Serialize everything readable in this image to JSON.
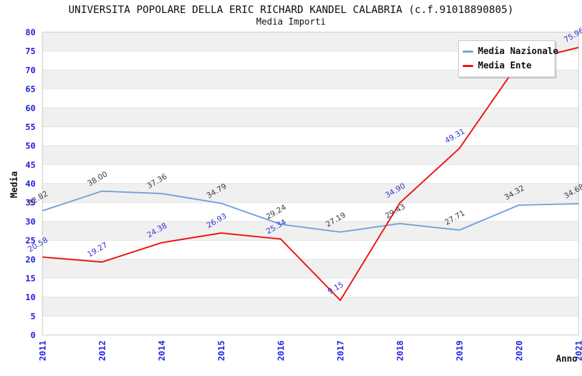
{
  "chart_data": {
    "type": "line",
    "title": "UNIVERSITA POPOLARE DELLA ERIC RICHARD KANDEL CALABRIA (c.f.91018890805)",
    "subtitle": "Media Importi",
    "xlabel": "Anno",
    "ylabel": "Media",
    "categories": [
      "2011",
      "2012",
      "2014",
      "2015",
      "2016",
      "2017",
      "2018",
      "2019",
      "2020",
      "2021"
    ],
    "ylim": [
      0,
      80
    ],
    "y_tick_step": 5,
    "y_ticks": [
      0,
      5,
      10,
      15,
      20,
      25,
      30,
      35,
      40,
      45,
      50,
      55,
      60,
      65,
      70,
      75,
      80
    ],
    "grid": "horizontal-stripes",
    "legend_position": "top-right",
    "series": [
      {
        "name": "Media Nazionale",
        "color": "#73a2d9",
        "label_color": "#3a3a45",
        "values": [
          32.82,
          38.0,
          37.36,
          34.79,
          29.24,
          27.19,
          29.43,
          27.71,
          34.32,
          34.68
        ],
        "labels": [
          "32.82",
          "38.00",
          "37.36",
          "34.79",
          "29.24",
          "27.19",
          "29.43",
          "27.71",
          "34.32",
          "34.68"
        ]
      },
      {
        "name": "Media Ente",
        "color": "#ee1111",
        "label_color": "#3333cc",
        "values": [
          20.58,
          19.27,
          24.38,
          26.93,
          25.34,
          9.15,
          34.9,
          49.31,
          72.0,
          75.96
        ],
        "labels": [
          "20.58",
          "19.27",
          "24.38",
          "26.93",
          "25.34",
          "9.15",
          "34.90",
          "49.31",
          null,
          "75.96"
        ]
      }
    ],
    "colors": {
      "tick_label": "#2222e0",
      "axis_label": "#111111",
      "stripe": "#f0f0f0",
      "gridline": "#e3e3e3",
      "plot_border": "#c9c9c9",
      "background": "#ffffff"
    }
  }
}
